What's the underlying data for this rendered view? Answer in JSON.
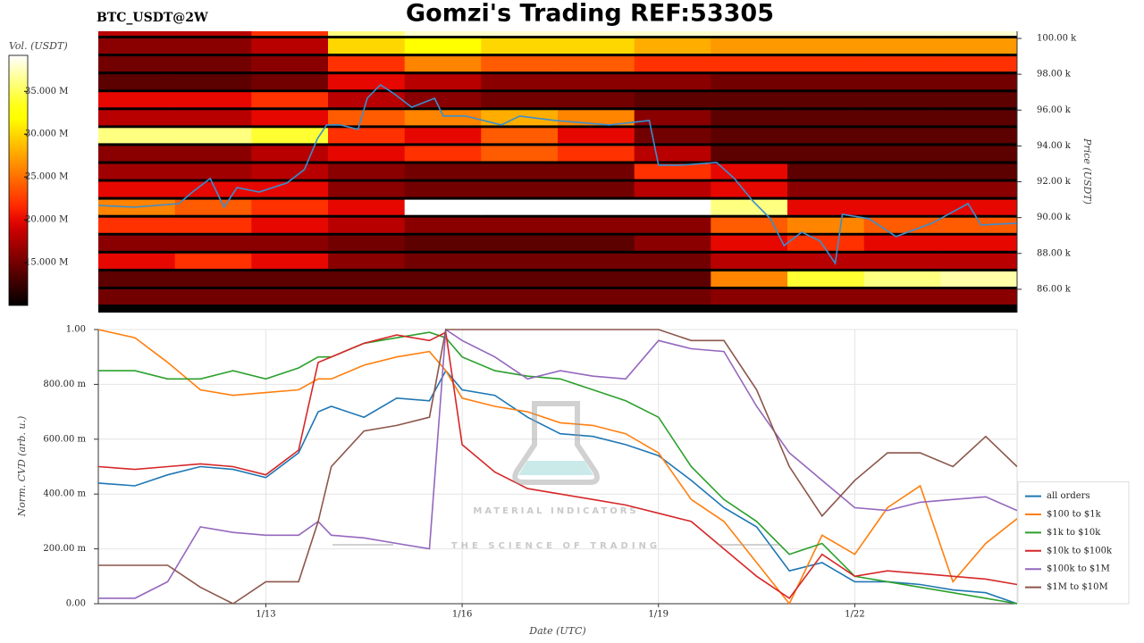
{
  "chart_data": [
    {
      "type": "heatmap",
      "title": "Gomzi's Trading REF:53305",
      "subtitle": "BTC_USDT@2W",
      "ylabel": "Price (USDT)",
      "colorbar_label": "Vol. (USDT)",
      "colormap": "hot",
      "xlim": [
        10.44,
        24.48
      ],
      "ylim": [
        84.7,
        100.4
      ],
      "yticks": [
        {
          "value": 86,
          "label": "86.00 k"
        },
        {
          "value": 88,
          "label": "88.00 k"
        },
        {
          "value": 90,
          "label": "90.00 k"
        },
        {
          "value": 92,
          "label": "92.00 k"
        },
        {
          "value": 94,
          "label": "94.00 k"
        },
        {
          "value": 96,
          "label": "96.00 k"
        },
        {
          "value": 98,
          "label": "98.00 k"
        },
        {
          "value": 100,
          "label": "100.00 k"
        }
      ],
      "clim": [
        10,
        39.2
      ],
      "cticks": [
        {
          "value": 15,
          "label": "15.000 M"
        },
        {
          "value": 20,
          "label": "20.000 M"
        },
        {
          "value": 25,
          "label": "25.000 M"
        },
        {
          "value": 30,
          "label": "30.000 M"
        },
        {
          "value": 35,
          "label": "35.000 M"
        }
      ],
      "xbins": [
        10.44,
        11.61,
        12.78,
        13.95,
        15.12,
        16.29,
        17.46,
        18.63,
        19.8,
        20.97,
        22.14,
        23.31,
        24.48
      ],
      "ybins": [
        85,
        86,
        87,
        88,
        89,
        90,
        91,
        92,
        93,
        94,
        95,
        96,
        97,
        98,
        99,
        100,
        101
      ],
      "z": [
        [
          15,
          15,
          15,
          15,
          15,
          15,
          15,
          15,
          16,
          16,
          16,
          16
        ],
        [
          14,
          14,
          14,
          14,
          14,
          14,
          14,
          14,
          26,
          34,
          36,
          37
        ],
        [
          20,
          22,
          20,
          16,
          15,
          15,
          15,
          15,
          18,
          18,
          18,
          18
        ],
        [
          16,
          16,
          16,
          15,
          14,
          14,
          14,
          16,
          20,
          22,
          20,
          20
        ],
        [
          22,
          22,
          20,
          18,
          16,
          16,
          16,
          16,
          24,
          26,
          24,
          24
        ],
        [
          26,
          24,
          22,
          20,
          40,
          40,
          40,
          40,
          36,
          20,
          20,
          20
        ],
        [
          20,
          20,
          20,
          16,
          15,
          15,
          15,
          18,
          20,
          16,
          16,
          16
        ],
        [
          17,
          17,
          18,
          16,
          15,
          15,
          15,
          22,
          20,
          14,
          14,
          14
        ],
        [
          16,
          16,
          18,
          20,
          22,
          24,
          22,
          18,
          14,
          14,
          14,
          14
        ],
        [
          36,
          36,
          34,
          22,
          20,
          24,
          20,
          15,
          14,
          14,
          14,
          14
        ],
        [
          18,
          18,
          20,
          24,
          26,
          28,
          26,
          16,
          14,
          14,
          14,
          14
        ],
        [
          20,
          20,
          22,
          18,
          16,
          15,
          15,
          14,
          14,
          14,
          14,
          14
        ],
        [
          14,
          14,
          15,
          20,
          18,
          16,
          16,
          16,
          15,
          15,
          15,
          15
        ],
        [
          15,
          15,
          16,
          22,
          26,
          24,
          24,
          22,
          22,
          22,
          22,
          22
        ],
        [
          16,
          16,
          18,
          30,
          32,
          30,
          30,
          28,
          27,
          27,
          27,
          27
        ],
        [
          18,
          18,
          22,
          36,
          38,
          38,
          38,
          38,
          38,
          38,
          38,
          38
        ]
      ],
      "price_line": {
        "color": "#3a8fd0",
        "x": [
          10.44,
          10.99,
          11.67,
          11.88,
          12.15,
          12.36,
          12.56,
          12.9,
          13.32,
          13.59,
          13.79,
          13.93,
          14.14,
          14.41,
          14.55,
          14.75,
          14.96,
          15.23,
          15.58,
          15.71,
          16.05,
          16.6,
          16.88,
          17.42,
          18.25,
          18.86,
          19.0,
          19.34,
          19.89,
          20.16,
          20.44,
          20.71,
          20.92,
          21.19,
          21.47,
          21.7,
          21.81,
          22.22,
          22.63,
          23.18,
          23.73,
          23.93,
          24.48
        ],
        "values": [
          90.68,
          90.58,
          90.78,
          91.43,
          92.18,
          90.58,
          91.68,
          91.43,
          91.93,
          92.68,
          94.42,
          95.17,
          95.17,
          94.92,
          96.66,
          97.41,
          96.91,
          96.16,
          96.66,
          95.67,
          95.67,
          95.17,
          95.67,
          95.42,
          95.17,
          95.42,
          92.93,
          92.93,
          93.08,
          92.18,
          90.93,
          89.94,
          88.44,
          89.19,
          88.69,
          87.45,
          90.19,
          89.94,
          88.94,
          89.69,
          90.78,
          89.59,
          89.69
        ]
      }
    },
    {
      "type": "line",
      "xlabel": "Date (UTC)",
      "ylabel": "Norm. CVD (arb. u.)",
      "xlim": [
        10.44,
        24.48
      ],
      "ylim": [
        0,
        1
      ],
      "xticks": [
        {
          "value": 13,
          "label": "1/13"
        },
        {
          "value": 16,
          "label": "1/16"
        },
        {
          "value": 19,
          "label": "1/19"
        },
        {
          "value": 22,
          "label": "1/22"
        }
      ],
      "yticks": [
        {
          "value": 0,
          "label": "0.00"
        },
        {
          "value": 0.2,
          "label": "200.00 m"
        },
        {
          "value": 0.4,
          "label": "400.00 m"
        },
        {
          "value": 0.6,
          "label": "600.00 m"
        },
        {
          "value": 0.8,
          "label": "800.00 m"
        },
        {
          "value": 1,
          "label": "1.00"
        }
      ],
      "grid": true,
      "legend": "lower right",
      "x": [
        10.44,
        11,
        11.5,
        12,
        12.5,
        13,
        13.5,
        13.8,
        14,
        14.5,
        15,
        15.5,
        15.75,
        16,
        16.5,
        17,
        17.5,
        18,
        18.5,
        19,
        19.5,
        20,
        20.5,
        21,
        21.5,
        22,
        22.5,
        23,
        23.5,
        24,
        24.48
      ],
      "series": [
        {
          "name": "all orders",
          "color": "#1f77b4",
          "values": [
            0.44,
            0.43,
            0.47,
            0.5,
            0.49,
            0.46,
            0.55,
            0.7,
            0.72,
            0.68,
            0.75,
            0.74,
            0.85,
            0.78,
            0.76,
            0.68,
            0.62,
            0.61,
            0.58,
            0.54,
            0.45,
            0.35,
            0.28,
            0.12,
            0.15,
            0.08,
            0.08,
            0.07,
            0.05,
            0.04,
            0.0
          ]
        },
        {
          "name": "$100 to $1k",
          "color": "#ff7f0e",
          "values": [
            1.0,
            0.97,
            0.88,
            0.78,
            0.76,
            0.77,
            0.78,
            0.82,
            0.82,
            0.87,
            0.9,
            0.92,
            0.85,
            0.75,
            0.72,
            0.7,
            0.66,
            0.65,
            0.62,
            0.55,
            0.38,
            0.3,
            0.15,
            0.0,
            0.25,
            0.18,
            0.35,
            0.43,
            0.08,
            0.22,
            0.31
          ]
        },
        {
          "name": "$1k to $10k",
          "color": "#2ca02c",
          "values": [
            0.85,
            0.85,
            0.82,
            0.82,
            0.85,
            0.82,
            0.86,
            0.9,
            0.9,
            0.95,
            0.97,
            0.99,
            0.97,
            0.9,
            0.85,
            0.83,
            0.82,
            0.78,
            0.74,
            0.68,
            0.5,
            0.38,
            0.3,
            0.18,
            0.22,
            0.1,
            0.08,
            0.06,
            0.04,
            0.02,
            0.0
          ]
        },
        {
          "name": "$10k to $100k",
          "color": "#d62728",
          "values": [
            0.5,
            0.49,
            0.5,
            0.51,
            0.5,
            0.47,
            0.56,
            0.88,
            0.9,
            0.95,
            0.98,
            0.96,
            0.99,
            0.58,
            0.48,
            0.42,
            0.4,
            0.38,
            0.36,
            0.33,
            0.3,
            0.2,
            0.1,
            0.02,
            0.18,
            0.1,
            0.12,
            0.11,
            0.1,
            0.09,
            0.07
          ]
        },
        {
          "name": "$100k to $1M",
          "color": "#9467bd",
          "values": [
            0.02,
            0.02,
            0.08,
            0.28,
            0.26,
            0.25,
            0.25,
            0.3,
            0.25,
            0.24,
            0.22,
            0.2,
            1.0,
            0.96,
            0.9,
            0.82,
            0.85,
            0.83,
            0.82,
            0.96,
            0.93,
            0.92,
            0.72,
            0.55,
            0.45,
            0.35,
            0.34,
            0.37,
            0.38,
            0.39,
            0.34
          ]
        },
        {
          "name": "$1M to $10M",
          "color": "#8c564b",
          "values": [
            0.14,
            0.14,
            0.14,
            0.06,
            0.0,
            0.08,
            0.08,
            0.3,
            0.5,
            0.63,
            0.65,
            0.68,
            1.0,
            1.0,
            1.0,
            1.0,
            1.0,
            1.0,
            1.0,
            1.0,
            0.96,
            0.96,
            0.78,
            0.5,
            0.32,
            0.45,
            0.55,
            0.55,
            0.5,
            0.61,
            0.5
          ]
        }
      ]
    }
  ],
  "watermark": {
    "title": "MATERIAL INDICATORS",
    "subtitle": "THE SCIENCE OF TRADING"
  }
}
